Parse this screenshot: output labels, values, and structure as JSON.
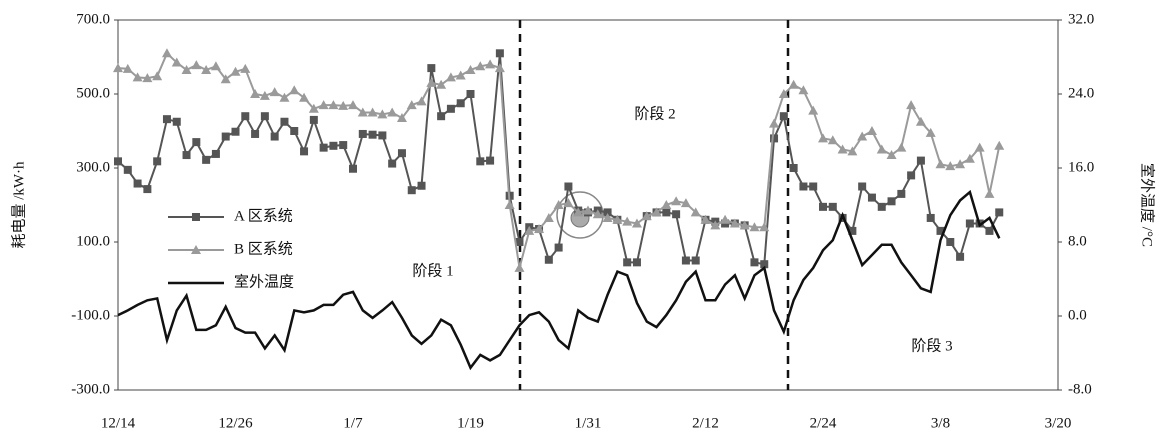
{
  "chart_data": {
    "type": "line",
    "y_label": "耗电量 /kW·h",
    "y2_label": "室外温度 /°C",
    "annotations": [
      "阶段 1",
      "阶段 2",
      "阶段 3"
    ],
    "categories": [
      "12/14",
      null,
      null,
      null,
      null,
      null,
      null,
      null,
      null,
      null,
      null,
      null,
      "12/26",
      null,
      null,
      null,
      null,
      null,
      null,
      null,
      null,
      null,
      null,
      null,
      "1/7",
      null,
      null,
      null,
      null,
      null,
      null,
      null,
      null,
      null,
      null,
      null,
      "1/19",
      null,
      null,
      null,
      null,
      null,
      null,
      null,
      null,
      null,
      null,
      null,
      "1/31",
      null,
      null,
      null,
      null,
      null,
      null,
      null,
      null,
      null,
      null,
      null,
      "2/12",
      null,
      null,
      null,
      null,
      null,
      null,
      null,
      null,
      null,
      null,
      null,
      "2/24",
      null,
      null,
      null,
      null,
      null,
      null,
      null,
      null,
      null,
      null,
      null,
      "3/8",
      null,
      null,
      null,
      null,
      null,
      null,
      null,
      null,
      null,
      null,
      null,
      "3/20"
    ],
    "ylim": [
      -300,
      700
    ],
    "yticks": [
      {
        "value": 700,
        "label": "700.0"
      },
      {
        "value": 500,
        "label": "500.0"
      },
      {
        "value": 300,
        "label": "300.0"
      },
      {
        "value": 100,
        "label": "100.0"
      },
      {
        "value": -100,
        "label": "-100.0"
      },
      {
        "value": -300,
        "label": "-300.0"
      }
    ],
    "y2lim": [
      -8,
      32
    ],
    "y2ticks": [
      {
        "value": 32,
        "label": "32.0"
      },
      {
        "value": 24,
        "label": "24.0"
      },
      {
        "value": 16,
        "label": "16.0"
      },
      {
        "value": 8,
        "label": "8.0"
      },
      {
        "value": 0,
        "label": "0.0"
      },
      {
        "value": -8,
        "label": "-8.0"
      }
    ],
    "series": [
      {
        "name": "A 区系统",
        "color": "#555555",
        "marker": "square",
        "values": [
          318,
          295,
          258,
          243,
          318,
          432,
          425,
          335,
          370,
          322,
          338,
          385,
          398,
          440,
          392,
          440,
          385,
          425,
          400,
          345,
          430,
          355,
          360,
          362,
          298,
          392,
          390,
          388,
          312,
          340,
          240,
          252,
          570,
          440,
          460,
          475,
          500,
          318,
          320,
          610,
          225,
          100,
          140,
          135,
          52,
          85,
          250,
          185,
          180,
          185,
          180,
          160,
          45,
          45,
          170,
          180,
          180,
          175,
          50,
          50,
          160,
          155,
          150,
          150,
          145,
          45,
          40,
          380,
          440,
          300,
          250,
          250,
          195,
          195,
          165,
          130,
          250,
          220,
          195,
          210,
          230,
          280,
          320,
          165,
          130,
          100,
          60,
          150,
          150,
          130,
          180,
          null,
          null,
          null,
          null,
          null,
          null
        ]
      },
      {
        "name": "B 区系统",
        "color": "#9a9a9a",
        "marker": "triangle",
        "values": [
          570,
          568,
          545,
          543,
          548,
          610,
          585,
          565,
          578,
          565,
          575,
          540,
          560,
          568,
          500,
          495,
          505,
          490,
          510,
          490,
          460,
          470,
          470,
          468,
          470,
          450,
          450,
          445,
          450,
          435,
          470,
          480,
          530,
          525,
          545,
          550,
          565,
          575,
          580,
          570,
          200,
          30,
          130,
          135,
          165,
          200,
          205,
          180,
          185,
          175,
          165,
          160,
          155,
          150,
          170,
          180,
          200,
          210,
          205,
          180,
          160,
          145,
          160,
          150,
          145,
          140,
          140,
          420,
          500,
          525,
          510,
          455,
          380,
          375,
          350,
          345,
          385,
          400,
          350,
          335,
          355,
          470,
          425,
          395,
          310,
          305,
          310,
          325,
          355,
          230,
          360,
          null,
          null,
          null,
          null,
          null,
          null
        ]
      },
      {
        "name": "室外温度",
        "color": "#111111",
        "axis": "y2",
        "values": [
          0.1,
          0.6,
          1.2,
          1.7,
          1.9,
          -2.6,
          0.6,
          2.2,
          -1.5,
          -1.5,
          -1.0,
          1.0,
          -1.3,
          -1.8,
          -1.8,
          -3.5,
          -2.1,
          -3.7,
          0.6,
          0.4,
          0.6,
          1.2,
          1.2,
          2.3,
          2.6,
          0.6,
          -0.2,
          0.6,
          1.5,
          -0.2,
          -2.1,
          -3.0,
          -2.1,
          -0.4,
          -1.0,
          -3.1,
          -5.6,
          -4.2,
          -4.8,
          -4.2,
          -2.6,
          -1.0,
          0.1,
          0.4,
          -0.6,
          -2.6,
          -3.5,
          0.6,
          -0.2,
          -0.6,
          2.3,
          4.8,
          4.4,
          1.4,
          -0.6,
          -1.2,
          0.1,
          1.7,
          3.7,
          4.8,
          1.7,
          1.7,
          3.4,
          4.4,
          1.9,
          4.4,
          5.2,
          0.6,
          -1.7,
          1.7,
          3.9,
          5.2,
          7.1,
          8.2,
          10.9,
          8.2,
          5.5,
          6.6,
          7.7,
          7.7,
          5.8,
          4.4,
          3.0,
          2.6,
          8.2,
          10.9,
          12.5,
          13.4,
          9.8,
          10.6,
          8.4,
          null,
          null,
          null,
          null,
          null,
          null
        ]
      }
    ]
  }
}
